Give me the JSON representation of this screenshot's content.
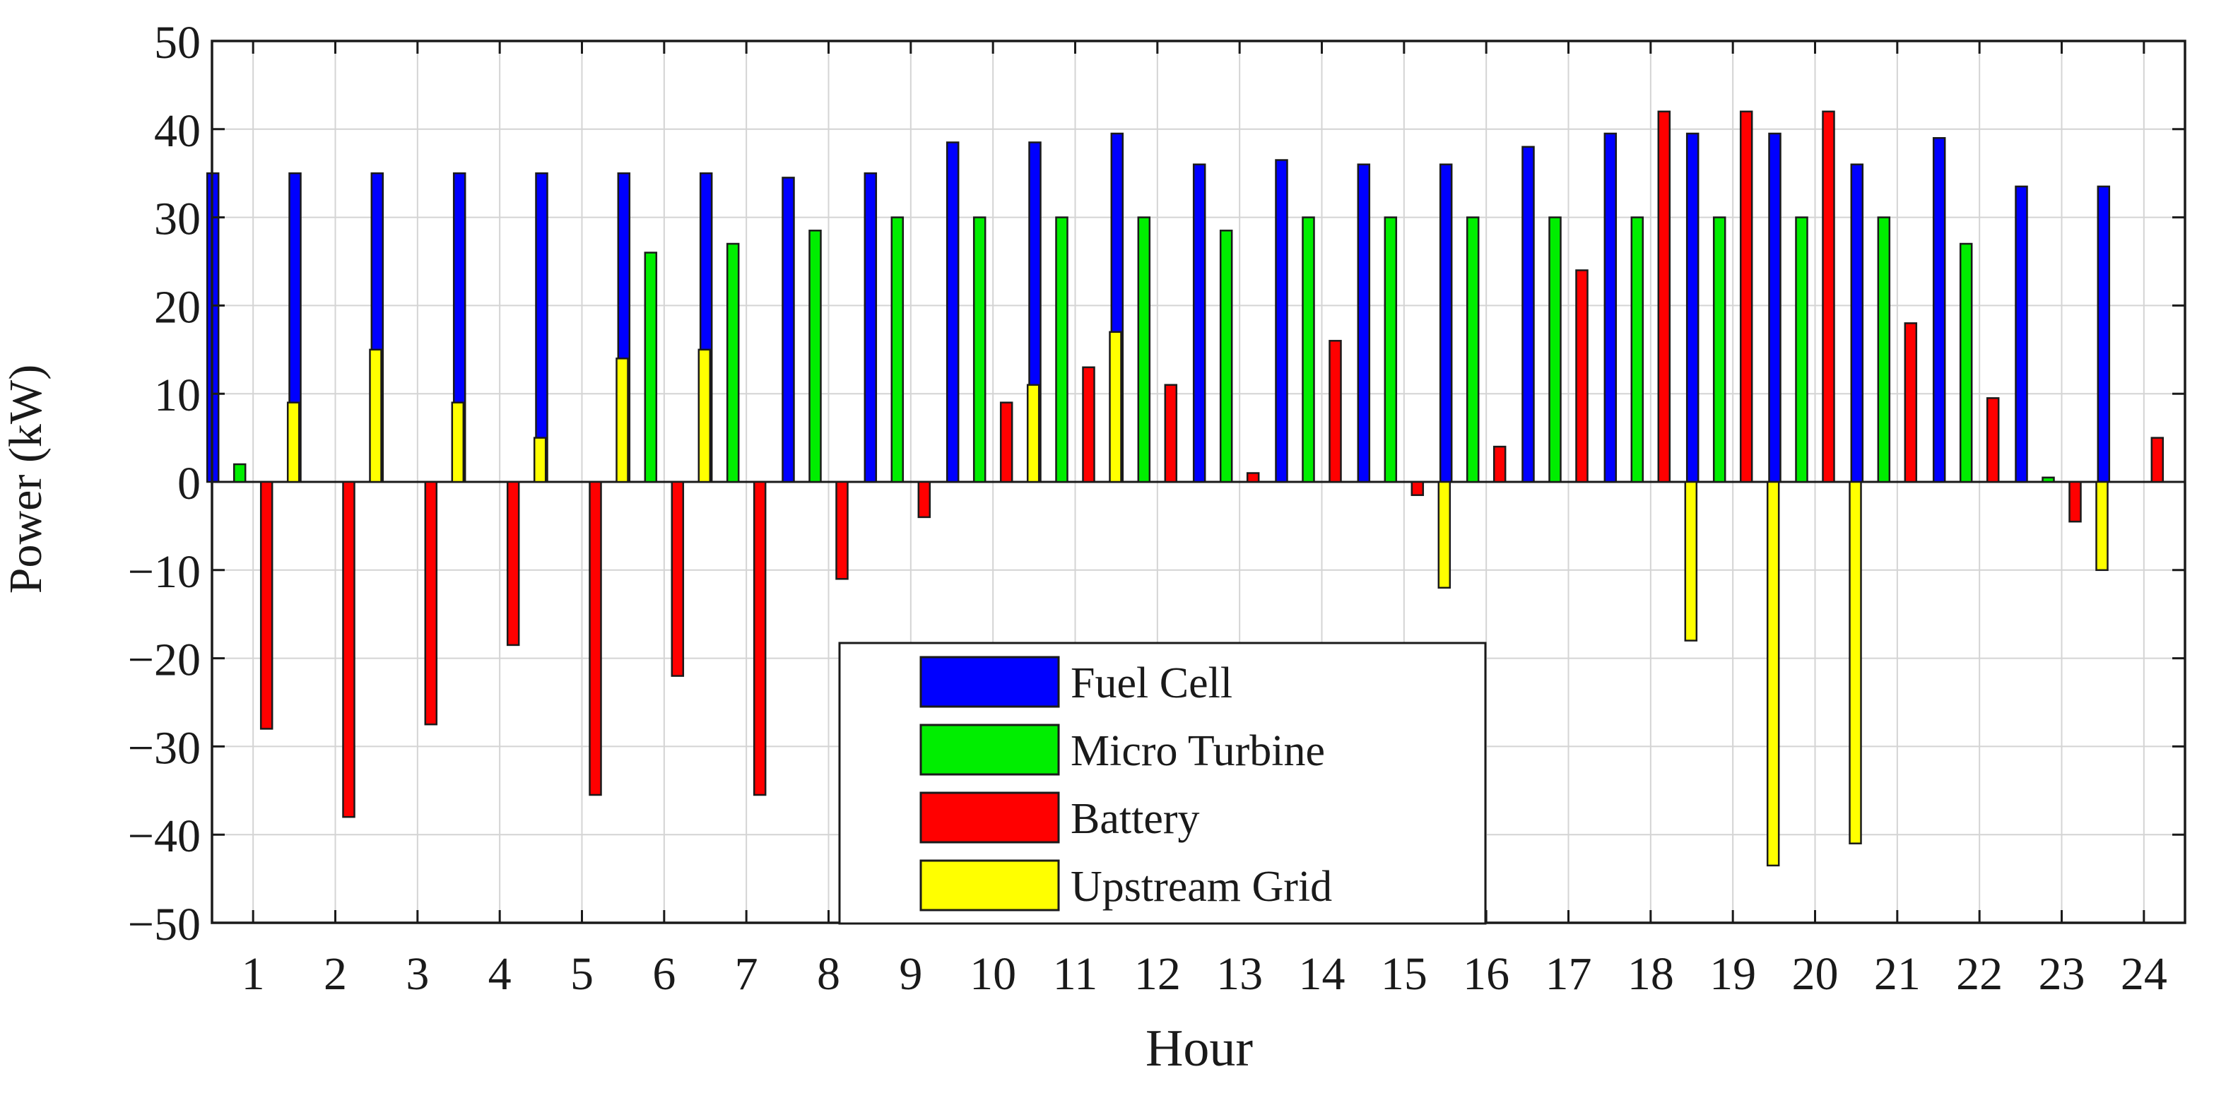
{
  "chart_data": {
    "type": "bar",
    "title": "",
    "xlabel": "Hour",
    "ylabel": "Power (kW)",
    "categories": [
      "1",
      "2",
      "3",
      "4",
      "5",
      "6",
      "7",
      "8",
      "9",
      "10",
      "11",
      "12",
      "13",
      "14",
      "15",
      "16",
      "17",
      "18",
      "19",
      "20",
      "21",
      "22",
      "23",
      "24"
    ],
    "ylim": [
      -50,
      50
    ],
    "yticks": [
      50,
      40,
      30,
      20,
      10,
      0,
      -10,
      -20,
      -30,
      -40,
      -50
    ],
    "ytick_labels": [
      "50",
      "40",
      "30",
      "20",
      "10",
      "0",
      "−10",
      "−20",
      "−30",
      "−40",
      "−50"
    ],
    "grid": true,
    "legend_position": "bottom-center",
    "series": [
      {
        "name": "Fuel Cell",
        "color": "#0000ff",
        "values": [
          35,
          35,
          35,
          35,
          35,
          35,
          35,
          34.5,
          35,
          38.5,
          38.5,
          39.5,
          36,
          36.5,
          36,
          36,
          38,
          39.5,
          39.5,
          39.5,
          36,
          39,
          33.5,
          33.5
        ]
      },
      {
        "name": "Micro Turbine",
        "color": "#00ee00",
        "values": [
          2,
          0,
          0,
          0,
          0,
          26,
          27,
          28.5,
          30,
          30,
          30,
          30,
          28.5,
          30,
          30,
          30,
          30,
          30,
          30,
          30,
          30,
          27,
          0.5,
          0
        ]
      },
      {
        "name": "Battery",
        "color": "#ff0000",
        "values": [
          -28,
          -38,
          -27.5,
          -18.5,
          -35.5,
          -22,
          -35.5,
          -11,
          -4,
          9,
          13,
          11,
          1,
          16,
          -1.5,
          4,
          24,
          42,
          42,
          42,
          18,
          9.5,
          -4.5,
          5
        ]
      },
      {
        "name": "Upstream Grid",
        "color": "#ffff00",
        "values": [
          9,
          15,
          9,
          5,
          14,
          15,
          0,
          0,
          0,
          11,
          17,
          0,
          0,
          0,
          -12,
          0,
          0,
          -18,
          -43.5,
          -41,
          0,
          0,
          -10,
          0
        ]
      }
    ]
  }
}
